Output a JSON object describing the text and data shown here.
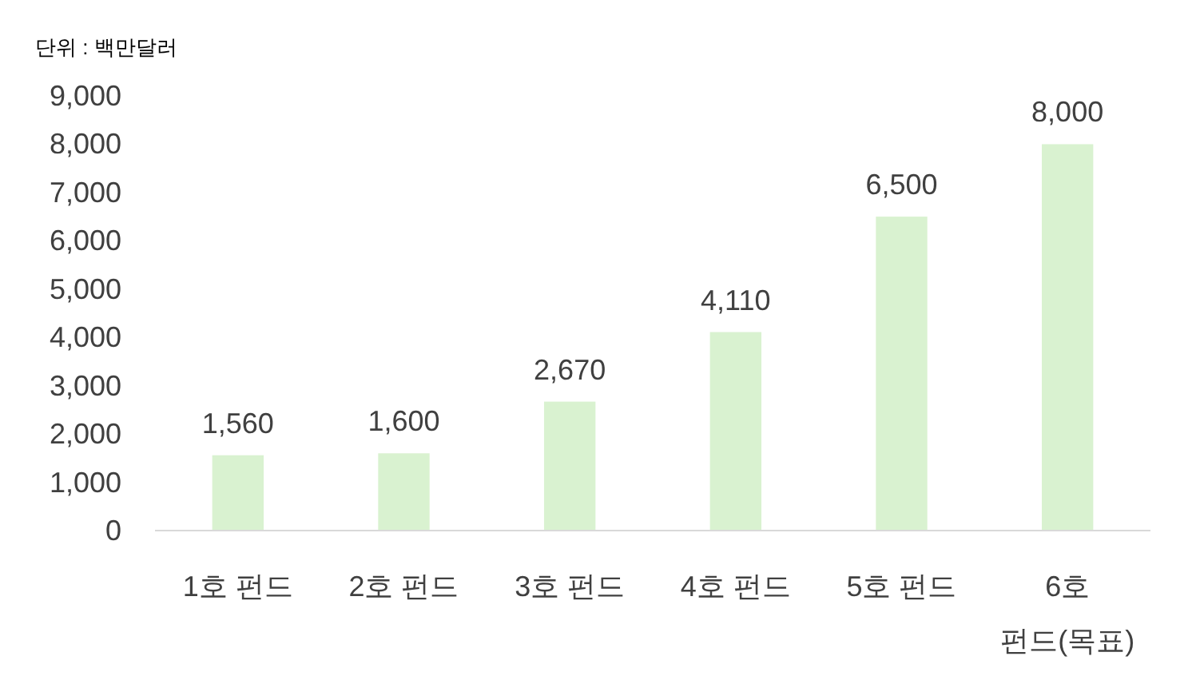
{
  "chart_data": {
    "type": "bar",
    "annotations": [
      "단위 : 백만달러"
    ],
    "categories": [
      "1호 펀드",
      "2호 펀드",
      "3호 펀드",
      "4호 펀드",
      "5호 펀드",
      "6호 펀드(목표)"
    ],
    "values": [
      1560,
      1600,
      2670,
      4110,
      6500,
      8000
    ],
    "color": "#d9f2d0",
    "ylim": [
      0,
      9000
    ],
    "yticks": [
      {
        "value": 0,
        "label": "0"
      },
      {
        "value": 1000,
        "label": "1,000"
      },
      {
        "value": 2000,
        "label": "2,000"
      },
      {
        "value": 3000,
        "label": "3,000"
      },
      {
        "value": 4000,
        "label": "4,000"
      },
      {
        "value": 5000,
        "label": "5,000"
      },
      {
        "value": 6000,
        "label": "6,000"
      },
      {
        "value": 7000,
        "label": "7,000"
      },
      {
        "value": 8000,
        "label": "8,000"
      },
      {
        "value": 9000,
        "label": "9,000"
      }
    ],
    "value_labels": [
      "1,560",
      "1,600",
      "2,670",
      "4,110",
      "6,500",
      "8,000"
    ],
    "grid": false
  }
}
